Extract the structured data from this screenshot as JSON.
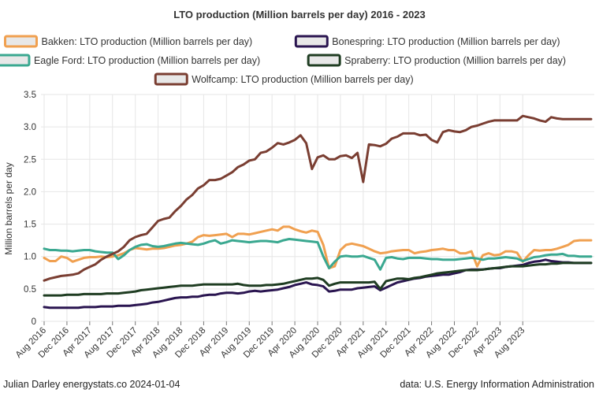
{
  "chart_data": {
    "type": "line",
    "title": "LTO production (Million barrels per day) 2016 - 2023",
    "ylabel": "Million barrels per day",
    "xlabel": "",
    "ylim": [
      0,
      3.5
    ],
    "yticks": [
      "0",
      "0.5",
      "1.0",
      "1.5",
      "2.0",
      "2.5",
      "3.0",
      "3.5"
    ],
    "grid": true,
    "legend_position": "top",
    "x_start": "Aug 2016",
    "x_end": "Dec 2023",
    "xtick_labels": [
      "Aug 2016",
      "Dec 2016",
      "Apr 2017",
      "Aug 2017",
      "Dec 2017",
      "Apr 2018",
      "Aug 2018",
      "Dec 2018",
      "Apr 2019",
      "Aug 2019",
      "Dec 2019",
      "Apr 2020",
      "Aug 2020",
      "Dec 2020",
      "Apr 2021",
      "Aug 2021",
      "Dec 2021",
      "Apr 2022",
      "Aug 2022",
      "Dec 2022",
      "Apr 2023",
      "Aug 2023"
    ],
    "series": [
      {
        "name": "Bakken: LTO production (Million barrels per day)",
        "color": "#f0a050",
        "values": [
          0.98,
          0.93,
          0.93,
          1.0,
          0.98,
          0.92,
          0.95,
          0.98,
          0.99,
          0.99,
          1.0,
          0.99,
          1.0,
          1.02,
          1.05,
          1.1,
          1.13,
          1.12,
          1.11,
          1.12,
          1.12,
          1.13,
          1.15,
          1.17,
          1.18,
          1.2,
          1.23,
          1.3,
          1.33,
          1.32,
          1.33,
          1.34,
          1.35,
          1.3,
          1.35,
          1.35,
          1.34,
          1.36,
          1.38,
          1.4,
          1.42,
          1.4,
          1.46,
          1.46,
          1.42,
          1.39,
          1.37,
          1.4,
          1.38,
          1.18,
          0.82,
          0.85,
          1.1,
          1.18,
          1.2,
          1.18,
          1.16,
          1.12,
          1.08,
          1.05,
          1.06,
          1.08,
          1.09,
          1.1,
          1.1,
          1.05,
          1.07,
          1.08,
          1.1,
          1.11,
          1.12,
          1.1,
          1.1,
          1.05,
          1.05,
          1.08,
          0.85,
          1.02,
          1.05,
          1.02,
          1.03,
          1.08,
          1.08,
          1.06,
          0.92,
          1.02,
          1.1,
          1.09,
          1.1,
          1.1,
          1.12,
          1.15,
          1.18,
          1.24,
          1.25,
          1.25,
          1.25
        ]
      },
      {
        "name": "Bonespring: LTO production (Million barrels per day)",
        "color": "#2a1550",
        "values": [
          0.22,
          0.21,
          0.21,
          0.21,
          0.21,
          0.21,
          0.21,
          0.22,
          0.22,
          0.22,
          0.23,
          0.23,
          0.23,
          0.24,
          0.24,
          0.24,
          0.25,
          0.26,
          0.27,
          0.29,
          0.3,
          0.32,
          0.34,
          0.36,
          0.37,
          0.37,
          0.38,
          0.38,
          0.4,
          0.41,
          0.41,
          0.43,
          0.44,
          0.44,
          0.43,
          0.44,
          0.46,
          0.47,
          0.46,
          0.47,
          0.48,
          0.49,
          0.51,
          0.53,
          0.56,
          0.58,
          0.6,
          0.57,
          0.56,
          0.54,
          0.46,
          0.47,
          0.49,
          0.49,
          0.49,
          0.51,
          0.52,
          0.53,
          0.54,
          0.48,
          0.52,
          0.56,
          0.6,
          0.62,
          0.64,
          0.66,
          0.67,
          0.69,
          0.7,
          0.71,
          0.72,
          0.72,
          0.74,
          0.76,
          0.79,
          0.8,
          0.8,
          0.8,
          0.81,
          0.82,
          0.82,
          0.84,
          0.85,
          0.86,
          0.87,
          0.9,
          0.92,
          0.93,
          0.95,
          0.93,
          0.92,
          0.91,
          0.91,
          0.9,
          0.9,
          0.9,
          0.9
        ]
      },
      {
        "name": "Eagle Ford: LTO production (Million barrels per day)",
        "color": "#3aa890",
        "values": [
          1.12,
          1.1,
          1.1,
          1.09,
          1.09,
          1.08,
          1.09,
          1.1,
          1.1,
          1.08,
          1.07,
          1.06,
          1.06,
          0.96,
          1.02,
          1.1,
          1.15,
          1.18,
          1.19,
          1.16,
          1.15,
          1.16,
          1.18,
          1.2,
          1.21,
          1.2,
          1.19,
          1.18,
          1.2,
          1.23,
          1.25,
          1.2,
          1.22,
          1.25,
          1.24,
          1.23,
          1.22,
          1.23,
          1.24,
          1.24,
          1.23,
          1.22,
          1.25,
          1.27,
          1.26,
          1.25,
          1.24,
          1.23,
          1.22,
          1.0,
          0.82,
          0.92,
          1.0,
          1.01,
          1.0,
          1.0,
          1.01,
          0.98,
          0.95,
          0.8,
          0.98,
          0.99,
          0.97,
          0.96,
          0.98,
          0.98,
          0.98,
          0.97,
          0.96,
          0.96,
          0.95,
          0.95,
          0.95,
          0.96,
          0.97,
          0.98,
          0.97,
          0.95,
          0.97,
          0.97,
          0.98,
          0.99,
          0.98,
          0.97,
          0.93,
          0.96,
          0.99,
          1.0,
          1.02,
          1.03,
          1.03,
          1.04,
          1.01,
          1.01,
          1.0,
          1.0,
          1.0
        ]
      },
      {
        "name": "Spraberry: LTO production (Million barrels per day)",
        "color": "#1f3d22",
        "values": [
          0.4,
          0.4,
          0.4,
          0.4,
          0.41,
          0.41,
          0.41,
          0.42,
          0.42,
          0.42,
          0.42,
          0.43,
          0.43,
          0.43,
          0.44,
          0.45,
          0.46,
          0.48,
          0.49,
          0.5,
          0.51,
          0.52,
          0.53,
          0.54,
          0.55,
          0.55,
          0.55,
          0.56,
          0.57,
          0.57,
          0.57,
          0.57,
          0.57,
          0.57,
          0.58,
          0.56,
          0.55,
          0.55,
          0.55,
          0.56,
          0.56,
          0.57,
          0.58,
          0.6,
          0.62,
          0.64,
          0.66,
          0.66,
          0.67,
          0.64,
          0.55,
          0.58,
          0.6,
          0.6,
          0.6,
          0.6,
          0.6,
          0.6,
          0.61,
          0.5,
          0.62,
          0.64,
          0.66,
          0.66,
          0.65,
          0.67,
          0.68,
          0.7,
          0.72,
          0.74,
          0.75,
          0.76,
          0.77,
          0.78,
          0.79,
          0.79,
          0.79,
          0.8,
          0.81,
          0.82,
          0.83,
          0.84,
          0.85,
          0.85,
          0.85,
          0.86,
          0.87,
          0.88,
          0.88,
          0.89,
          0.89,
          0.9,
          0.9,
          0.9,
          0.9,
          0.9,
          0.9
        ]
      },
      {
        "name": "Wolfcamp: LTO production (Million barrels per day)",
        "color": "#7a3e32",
        "values": [
          0.63,
          0.66,
          0.68,
          0.7,
          0.71,
          0.72,
          0.74,
          0.8,
          0.84,
          0.88,
          0.95,
          1.0,
          1.04,
          1.08,
          1.15,
          1.25,
          1.3,
          1.33,
          1.35,
          1.45,
          1.55,
          1.58,
          1.6,
          1.7,
          1.78,
          1.88,
          1.95,
          2.05,
          2.1,
          2.18,
          2.18,
          2.2,
          2.25,
          2.3,
          2.38,
          2.42,
          2.48,
          2.5,
          2.6,
          2.62,
          2.68,
          2.75,
          2.73,
          2.76,
          2.8,
          2.87,
          2.75,
          2.35,
          2.53,
          2.56,
          2.5,
          2.5,
          2.55,
          2.56,
          2.52,
          2.6,
          2.15,
          2.73,
          2.72,
          2.7,
          2.74,
          2.82,
          2.85,
          2.9,
          2.9,
          2.9,
          2.87,
          2.88,
          2.8,
          2.76,
          2.92,
          2.95,
          2.93,
          2.92,
          2.95,
          3.0,
          3.02,
          3.05,
          3.08,
          3.1,
          3.1,
          3.1,
          3.1,
          3.1,
          3.17,
          3.15,
          3.13,
          3.1,
          3.08,
          3.15,
          3.13,
          3.12,
          3.12,
          3.12,
          3.12,
          3.12,
          3.12
        ]
      }
    ]
  },
  "footer": {
    "credit": "Julian Darley energystats.co 2024-01-04",
    "source": "data: U.S. Energy Information Administration"
  }
}
